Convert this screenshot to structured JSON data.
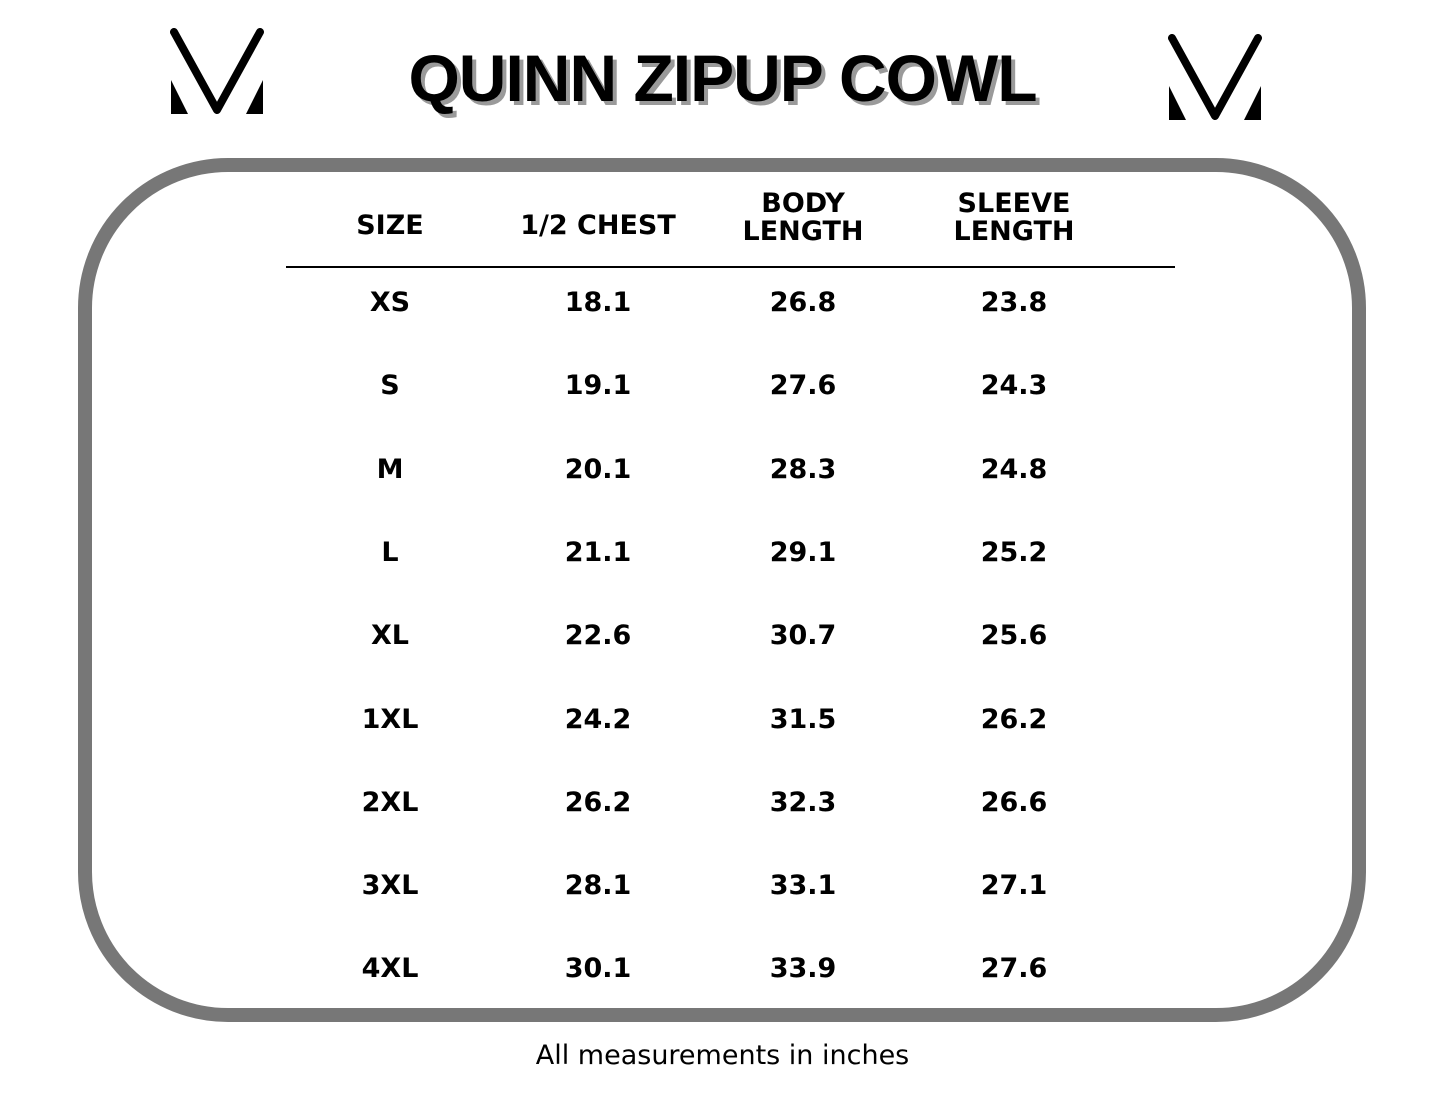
{
  "title": "QUINN ZIPUP COWL",
  "logo": "M-monogram-logo",
  "colors": {
    "frame": "#777777",
    "title_shadow": "#9a9a9a"
  },
  "table": {
    "headers": [
      [
        "SIZE",
        ""
      ],
      [
        "1/2 CHEST",
        ""
      ],
      [
        "BODY",
        "LENGTH"
      ],
      [
        "SLEEVE",
        "LENGTH"
      ]
    ],
    "rows": [
      [
        "XS",
        "18.1",
        "26.8",
        "23.8"
      ],
      [
        "S",
        "19.1",
        "27.6",
        "24.3"
      ],
      [
        "M",
        "20.1",
        "28.3",
        "24.8"
      ],
      [
        "L",
        "21.1",
        "29.1",
        "25.2"
      ],
      [
        "XL",
        "22.6",
        "30.7",
        "25.6"
      ],
      [
        "1XL",
        "24.2",
        "31.5",
        "26.2"
      ],
      [
        "2XL",
        "26.2",
        "32.3",
        "26.6"
      ],
      [
        "3XL",
        "28.1",
        "33.1",
        "27.1"
      ],
      [
        "4XL",
        "30.1",
        "33.9",
        "27.6"
      ]
    ]
  },
  "footer": "All measurements in inches"
}
